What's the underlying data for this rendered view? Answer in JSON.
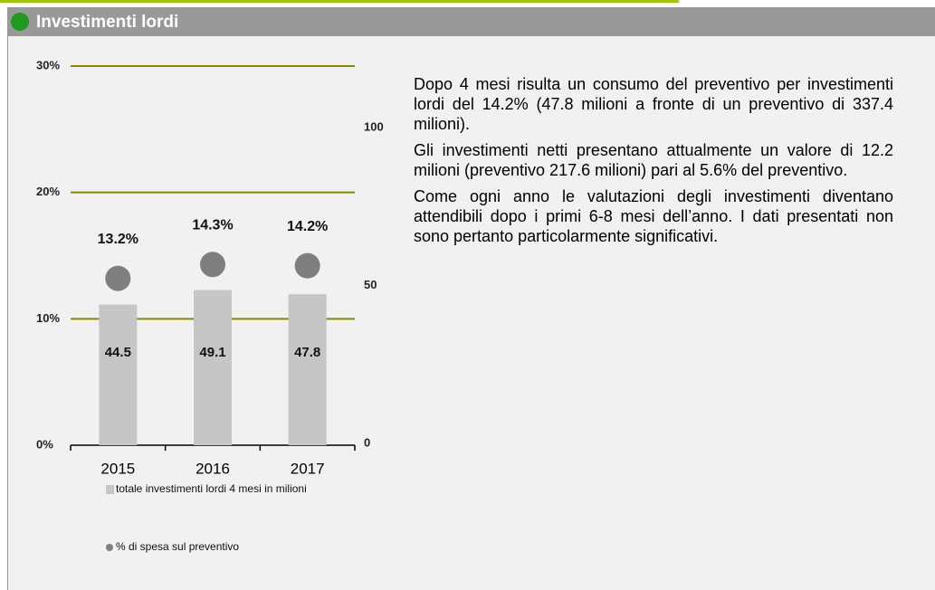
{
  "header": {
    "title": "Investimenti lordi"
  },
  "chart_data": {
    "type": "bar",
    "categories": [
      "2015",
      "2016",
      "2017"
    ],
    "series": [
      {
        "name": "totale investimenti lordi 4 mesi in milioni",
        "color": "#c6c6c6",
        "values": [
          44.5,
          49.1,
          47.8
        ],
        "axis": "y2"
      },
      {
        "name": "% di spesa sul preventivo",
        "color": "#7f7f7f",
        "values": [
          13.2,
          14.3,
          14.2
        ],
        "value_labels": [
          "13.2%",
          "14.3%",
          "14.2%"
        ],
        "type": "scatter"
      }
    ],
    "ylim": [
      0,
      30
    ],
    "yticks": [
      {
        "value": 0,
        "label": "0%"
      },
      {
        "value": 10,
        "label": "10%"
      },
      {
        "value": 20,
        "label": "20%"
      },
      {
        "value": 30,
        "label": "30%"
      }
    ],
    "y2lim": [
      0,
      120
    ],
    "y2ticks": [
      0,
      50,
      100
    ],
    "grid": true,
    "grid_color": "#8a8a00"
  },
  "text": {
    "paragraphs": [
      "Dopo 4 mesi risulta un consumo del preventivo per investimenti lordi del 14.2% (47.8 milioni a fronte di un preventivo di 337.4 milioni).",
      "Gli investimenti netti presentano attualmente un valore di 12.2 milioni (preventivo 217.6 milioni) pari al 5.6% del preventivo.",
      "Come ogni anno le valutazioni degli investimenti diventano attendibili dopo i primi 6-8 mesi dell’anno. I dati presentati non sono pertanto particolarmente significativi."
    ]
  }
}
